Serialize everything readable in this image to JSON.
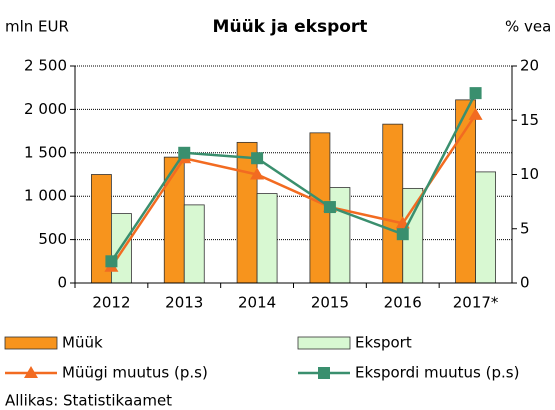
{
  "chart_data": {
    "type": "bar_line",
    "title": "Müük ja eksport",
    "y_label": "mln EUR",
    "y2_label": "% vea",
    "source": "Allikas: Statistikaamet",
    "categories": [
      "2012",
      "2013",
      "2014",
      "2015",
      "2016",
      "2017*"
    ],
    "ylim": [
      0,
      2500
    ],
    "yticks": [
      0,
      500,
      {
        "value": 1000,
        "label": "1 000"
      },
      {
        "value": 1500,
        "label": "1 500"
      },
      {
        "value": 2000,
        "label": "2 000"
      },
      {
        "value": 2500,
        "label": "2 500"
      }
    ],
    "y2lim": [
      0,
      20
    ],
    "y2ticks": [
      0,
      5,
      10,
      15,
      20
    ],
    "grid": true,
    "series": [
      {
        "name": "Müük",
        "kind": "bar",
        "color": "#f7941d",
        "values": [
          1250,
          1450,
          1620,
          1730,
          1830,
          2110
        ]
      },
      {
        "name": "Eksport",
        "kind": "bar",
        "color": "#d8f8d2",
        "values": [
          800,
          900,
          1030,
          1100,
          1090,
          1280
        ]
      },
      {
        "name": "Müügi muutus (p.s)",
        "kind": "line",
        "marker": "triangle",
        "axis": "y2",
        "color": "#f26b21",
        "values": [
          1.5,
          11.5,
          10,
          7,
          5.5,
          15.5
        ]
      },
      {
        "name": "Ekspordi muutus (p.s)",
        "kind": "line",
        "marker": "square",
        "axis": "y2",
        "color": "#3a8f6e",
        "values": [
          2,
          12,
          11.5,
          7,
          4.5,
          17.5
        ]
      }
    ]
  }
}
